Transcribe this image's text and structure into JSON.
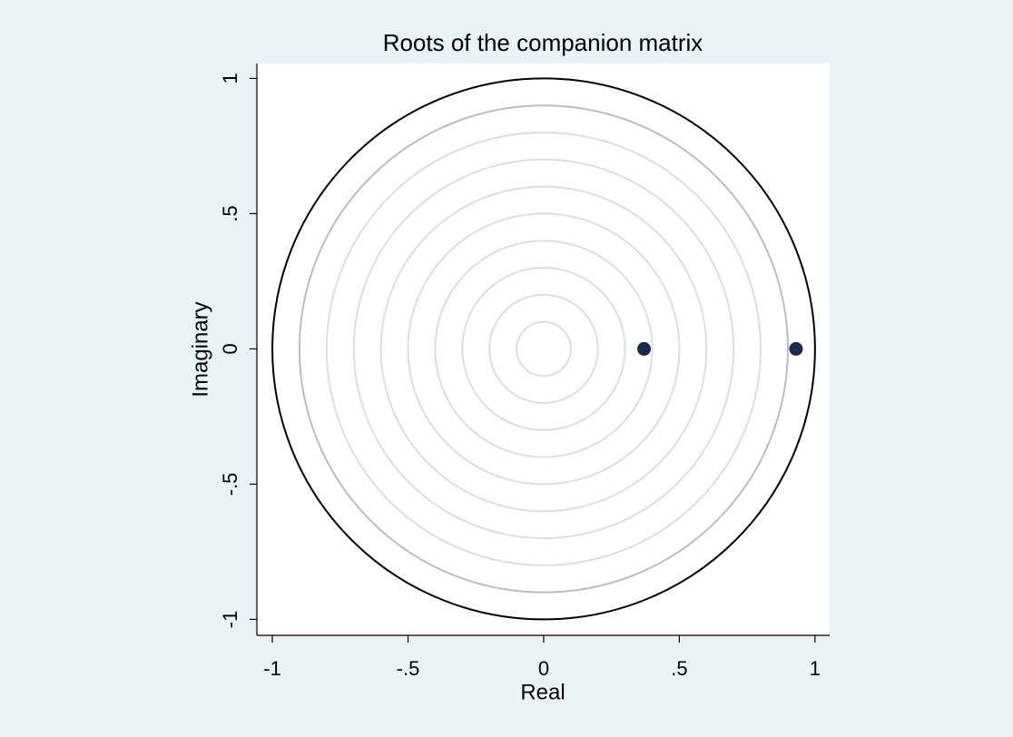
{
  "chart_data": {
    "type": "scatter",
    "title": "Roots of the companion matrix",
    "x_label": "Real",
    "y_label": "Imaginary",
    "series": [
      {
        "x": [
          0.37,
          0.93
        ],
        "values": [
          0,
          0
        ],
        "color": "#1a2a4f"
      }
    ],
    "circles": [
      {
        "r": 1,
        "color": "#000000"
      },
      {
        "r": 0.9,
        "color": "#bdbdbd"
      },
      {
        "r": 0.8,
        "color": "#dedede"
      },
      {
        "r": 0.7,
        "color": "#dedede"
      },
      {
        "r": 0.6,
        "color": "#dedede"
      },
      {
        "r": 0.5,
        "color": "#dedede"
      },
      {
        "r": 0.4,
        "color": "#dedede"
      },
      {
        "r": 0.3,
        "color": "#dedede"
      },
      {
        "r": 0.2,
        "color": "#dedede"
      },
      {
        "r": 0.1,
        "color": "#dedede"
      }
    ],
    "xlim": [
      -1.057,
      1.054
    ],
    "ylim": [
      -1.059,
      1.055
    ],
    "xticks": [
      -1,
      {
        "value": -0.5,
        "label": "-.5"
      },
      0,
      {
        "value": 0.5,
        "label": ".5"
      },
      1
    ],
    "yticks": [
      -1,
      {
        "value": -0.5,
        "label": "-.5"
      },
      0,
      {
        "value": 0.5,
        "label": ".5"
      },
      1
    ],
    "grid": false
  }
}
